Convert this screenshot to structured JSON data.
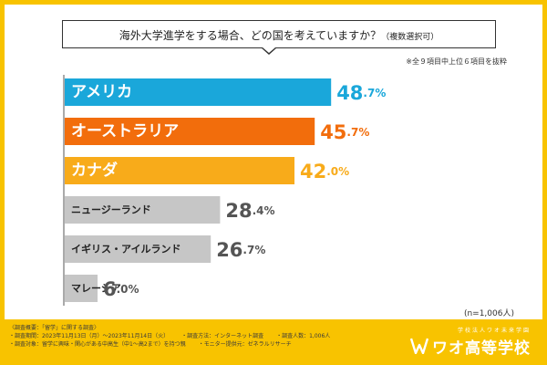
{
  "question": {
    "text": "海外大学進学をする場合、どの国を考えていますか？",
    "note": "（複数選択可）"
  },
  "extract_note": "※全９項目中上位６項目を抜粋",
  "sample_size": "(n=1,006人)",
  "chart_data": {
    "type": "bar",
    "orientation": "horizontal",
    "title": "海外大学進学をする場合、どの国を考えていますか？",
    "categories": [
      "アメリカ",
      "オーストラリア",
      "カナダ",
      "ニュージーランド",
      "イギリス・アイルランド",
      "マレーシア"
    ],
    "values": [
      48.7,
      45.7,
      42.0,
      28.4,
      26.7,
      6.0
    ],
    "value_labels": [
      {
        "int": "48",
        "dec": ".7%"
      },
      {
        "int": "45",
        "dec": ".7%"
      },
      {
        "int": "42",
        "dec": ".0%"
      },
      {
        "int": "28",
        "dec": ".4%"
      },
      {
        "int": "26",
        "dec": ".7%"
      },
      {
        "int": "6",
        "dec": ".0%"
      }
    ],
    "colors": [
      "#1aa7da",
      "#f26d0c",
      "#f8ab1a",
      "#c6c6c6",
      "#c6c6c6",
      "#c6c6c6"
    ],
    "label_colors": [
      "#ffffff",
      "#ffffff",
      "#ffffff",
      "#222222",
      "#222222",
      "#222222"
    ],
    "value_colors": [
      "#1aa7da",
      "#f26d0c",
      "#f8ab1a",
      "#555555",
      "#555555",
      "#555555"
    ],
    "xlim": [
      0,
      100
    ]
  },
  "footer": {
    "survey_lines": [
      "〈調査概要：「留学」に関する調査〉",
      "・調査期間：2023年11月13日（月）〜2023年11月14日（火）",
      "・調査方法：インターネット調査",
      "・調査人数：1,006人",
      "・調査対象：留学に興味・関心がある中高生（中1〜高2まで）を持つ親",
      "・モニター提供元：ゼネラルリサーチ"
    ]
  },
  "logo": {
    "corp": "学校法人ワオ未来学園",
    "name": "ワオ高等学校"
  }
}
